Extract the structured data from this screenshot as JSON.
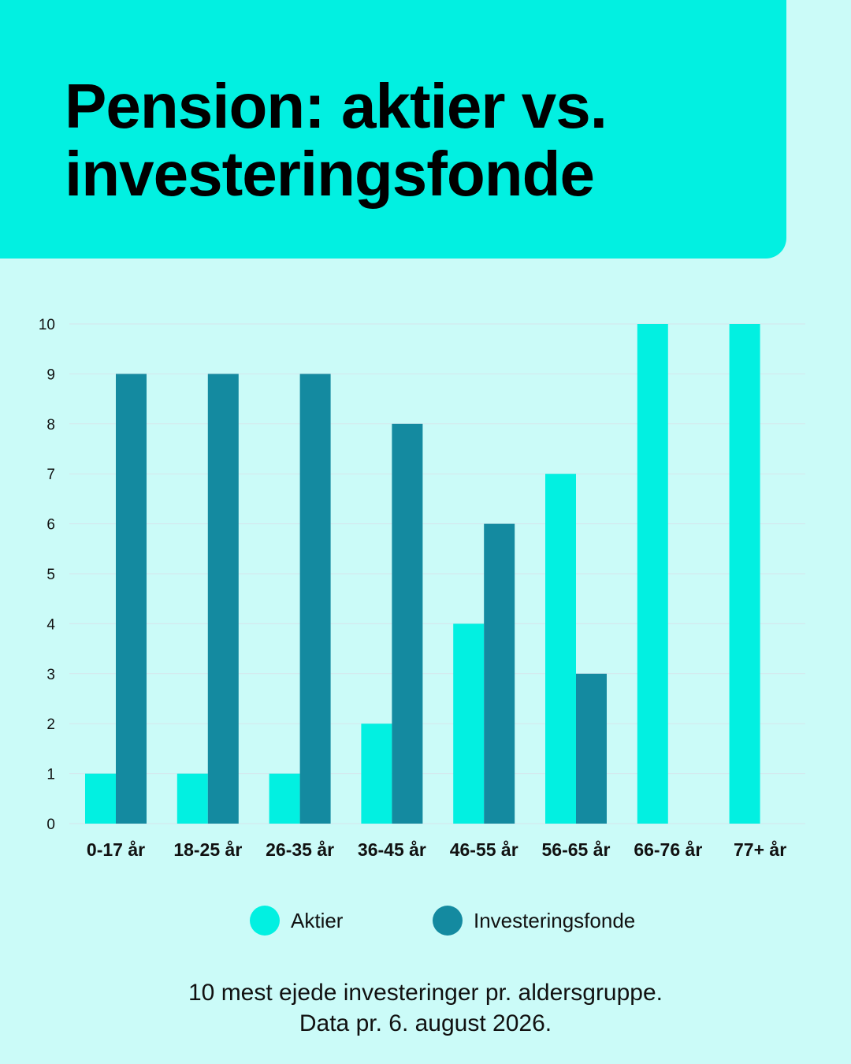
{
  "title": {
    "line1": "Pension: aktier vs.",
    "line2": "investeringsfonde"
  },
  "footnote": {
    "line1": "10 mest ejede investeringer pr. aldersgruppe.",
    "line2": "Data pr. 6. august 2026."
  },
  "colors": {
    "background": "#cbfbf8",
    "header": "#02f0e1",
    "aktier": "#02f0e1",
    "investeringsfonde": "#148aa0",
    "gridline": "#d6e6ec"
  },
  "chart_data": {
    "type": "bar",
    "title": "Pension: aktier vs. investeringsfonde",
    "xlabel": "",
    "ylabel": "",
    "categories": [
      "0-17 år",
      "18-25 år",
      "26-35 år",
      "36-45 år",
      "46-55 år",
      "56-65 år",
      "66-76 år",
      "77+ år"
    ],
    "series": [
      {
        "name": "Aktier",
        "color": "#02f0e1",
        "values": [
          1,
          1,
          1,
          2,
          4,
          7,
          10,
          10
        ]
      },
      {
        "name": "Investeringsfonde",
        "color": "#148aa0",
        "values": [
          9,
          9,
          9,
          8,
          6,
          3,
          0,
          0
        ]
      }
    ],
    "ylim": [
      0,
      10
    ],
    "yticks": [
      "0",
      "1",
      "2",
      "3",
      "4",
      "5",
      "6",
      "7",
      "8",
      "9",
      "10"
    ],
    "grid": true,
    "legend_position": "bottom"
  }
}
